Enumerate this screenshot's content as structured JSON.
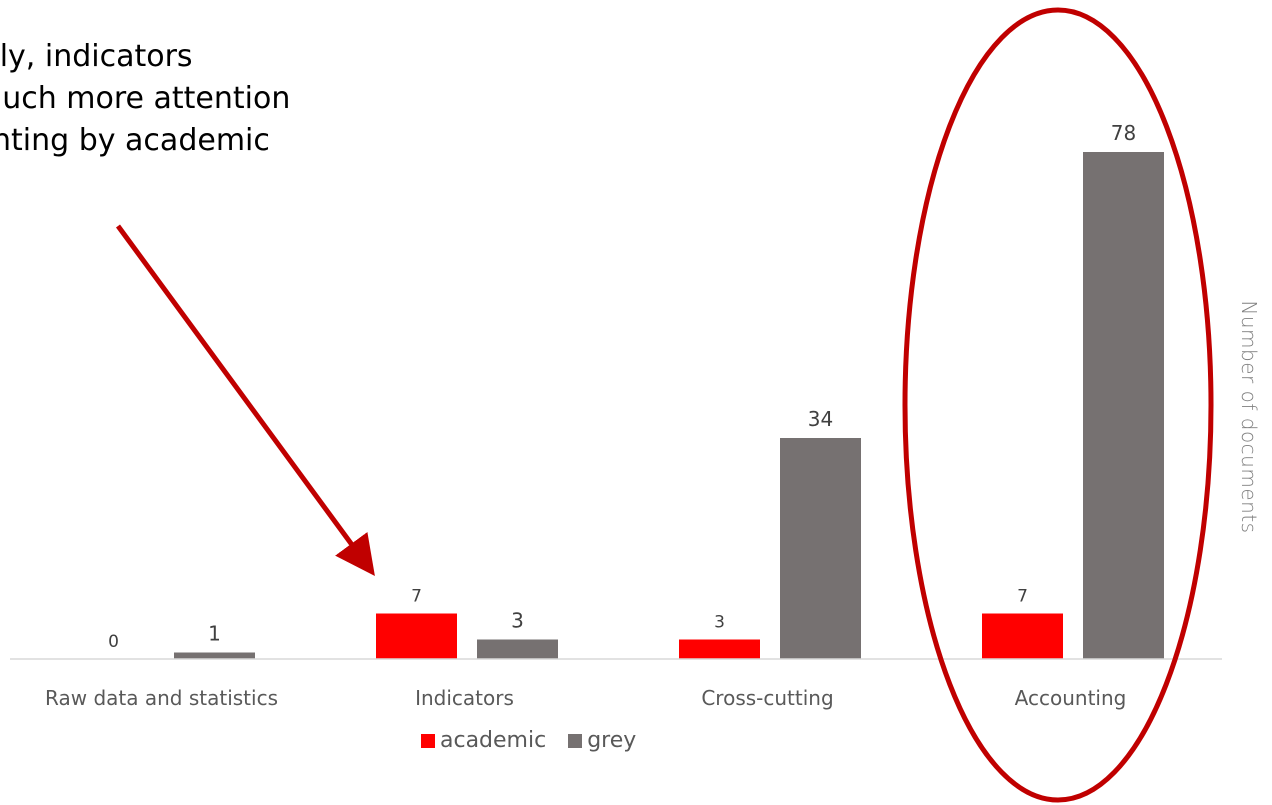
{
  "annotation": {
    "text": "ally, indicators\nmuch more attention\nunting by academic\ny"
  },
  "colors": {
    "academic": "#ff0000",
    "grey": "#767171",
    "annotation_red": "#c00000",
    "axis": "#d9d9d9",
    "tick_text": "#595959",
    "ylabel_text": "#7f7f7f"
  },
  "chart_data": {
    "type": "bar",
    "categories": [
      "Raw data and statistics",
      "Indicators",
      "Cross-cutting",
      "Accounting"
    ],
    "series": [
      {
        "name": "academic",
        "values": [
          0,
          7,
          3,
          7
        ]
      },
      {
        "name": "grey",
        "values": [
          1,
          3,
          34,
          78
        ]
      }
    ],
    "ylabel": "Number of documents",
    "ylim": [
      0,
      80
    ],
    "grid": false,
    "legend_position": "bottom"
  }
}
